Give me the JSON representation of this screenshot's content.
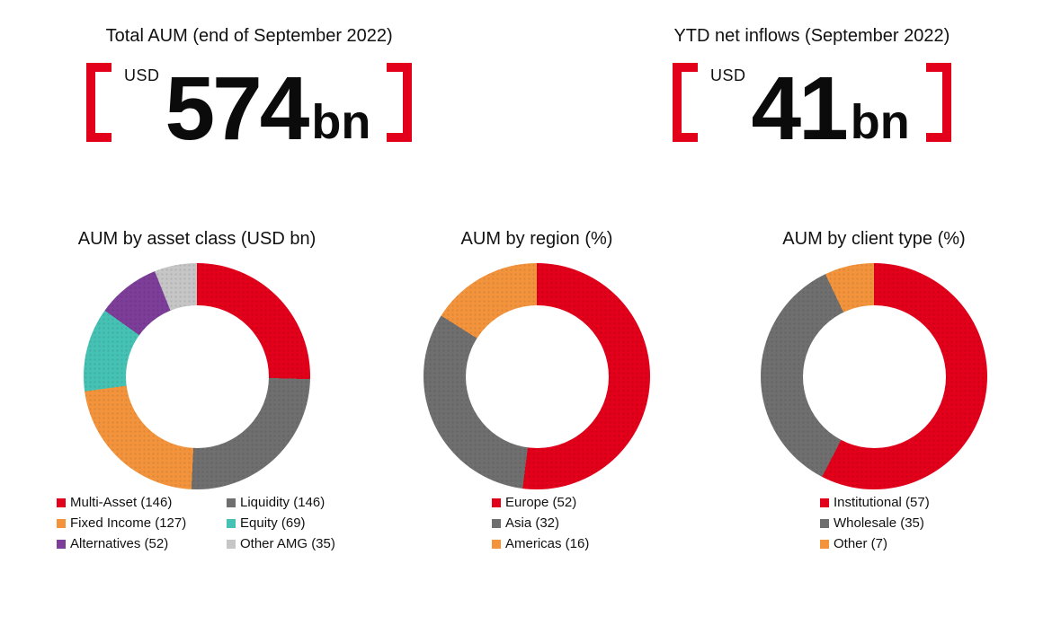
{
  "colors": {
    "brand_red": "#e2001a",
    "dark_gray": "#6f6f6f",
    "orange": "#f3943d",
    "teal": "#45c2b4",
    "purple": "#7c3e99",
    "light_gray": "#c6c6c6",
    "text": "#111111"
  },
  "stats": [
    {
      "title": "Total AUM (end of September 2022)",
      "currency": "USD",
      "value": "574",
      "unit": "bn"
    },
    {
      "title": "YTD net inflows (September 2022)",
      "currency": "USD",
      "value": "41",
      "unit": "bn"
    }
  ],
  "chart_data": [
    {
      "type": "pie",
      "subtype": "donut",
      "title": "AUM by asset class (USD bn)",
      "start_angle_deg": 0,
      "direction": "clockwise",
      "legend_columns": 2,
      "legend_position": "bottom",
      "segments": [
        {
          "label": "Multi-Asset",
          "value": 146,
          "color": "#e2001a"
        },
        {
          "label": "Liquidity",
          "value": 146,
          "color": "#6f6f6f"
        },
        {
          "label": "Fixed Income",
          "value": 127,
          "color": "#f3943d"
        },
        {
          "label": "Equity",
          "value": 69,
          "color": "#45c2b4"
        },
        {
          "label": "Alternatives",
          "value": 52,
          "color": "#7c3e99"
        },
        {
          "label": "Other AMG",
          "value": 35,
          "color": "#c6c6c6"
        }
      ]
    },
    {
      "type": "pie",
      "subtype": "donut",
      "title": "AUM by region (%)",
      "start_angle_deg": 0,
      "direction": "clockwise",
      "legend_columns": 1,
      "legend_position": "bottom",
      "segments": [
        {
          "label": "Europe",
          "value": 52,
          "color": "#e2001a"
        },
        {
          "label": "Asia",
          "value": 32,
          "color": "#6f6f6f"
        },
        {
          "label": "Americas",
          "value": 16,
          "color": "#f3943d"
        }
      ]
    },
    {
      "type": "pie",
      "subtype": "donut",
      "title": "AUM by client type (%)",
      "start_angle_deg": 0,
      "direction": "clockwise",
      "legend_columns": 1,
      "legend_position": "bottom",
      "segments": [
        {
          "label": "Institutional",
          "value": 57,
          "color": "#e2001a"
        },
        {
          "label": "Wholesale",
          "value": 35,
          "color": "#6f6f6f"
        },
        {
          "label": "Other",
          "value": 7,
          "color": "#f3943d"
        }
      ]
    }
  ]
}
